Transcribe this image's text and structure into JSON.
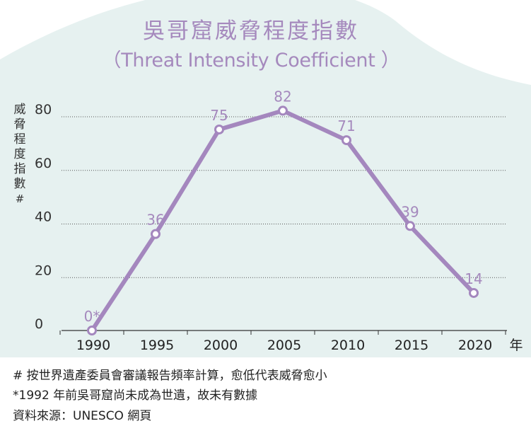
{
  "title_zh": "吳哥窟威脅程度指數",
  "title_en": "（Threat Intensity Coefficient ）",
  "y_axis_label": "威脅程度指數#",
  "x_axis_unit": "年",
  "colors": {
    "line": "#a487be",
    "label": "#a589bd",
    "background_wash": "#e6f1f0",
    "grid": "#555555"
  },
  "chart_data": {
    "type": "line",
    "x": [
      1990,
      1995,
      2000,
      2005,
      2010,
      2015,
      2020
    ],
    "values": [
      0,
      36,
      75,
      82,
      71,
      39,
      14
    ],
    "data_labels": [
      "0*",
      "36",
      "75",
      "82",
      "71",
      "39",
      "14"
    ],
    "x_tick_labels": [
      "1990",
      "1995",
      "2000",
      "2005",
      "2010",
      "2015",
      "2020"
    ],
    "y_ticks": [
      0,
      20,
      40,
      60,
      80
    ],
    "y_tick_labels": [
      "0",
      "20",
      "40",
      "60",
      "80"
    ],
    "ylim": [
      0,
      80
    ],
    "grid": "dotted horizontal"
  },
  "footnotes": [
    "# 按世界遺產委員會審議報告頻率計算，愈低代表威脅愈小",
    "*1992 年前吳哥窟尚未成為世遺，故未有數據",
    "資料來源：UNESCO 網頁"
  ]
}
